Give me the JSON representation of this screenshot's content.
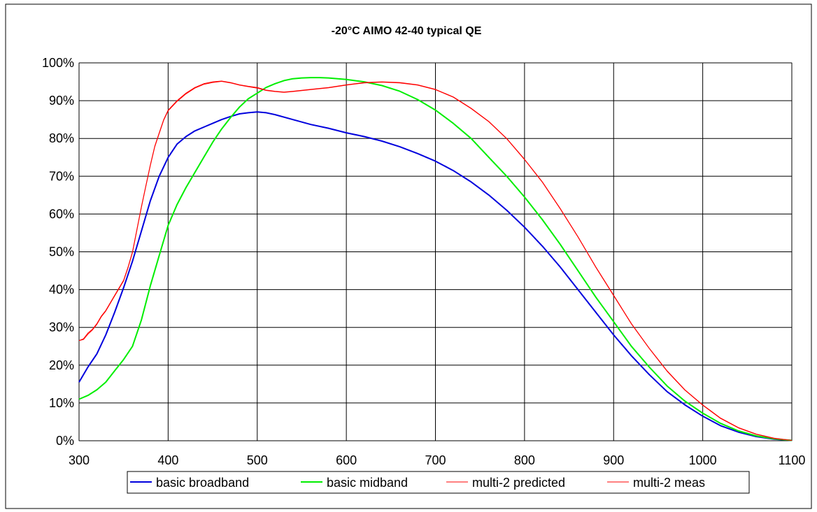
{
  "chart_data": {
    "type": "line",
    "title": "-20°C AIMO 42-40 typical QE",
    "xlabel": "",
    "ylabel": "",
    "xlim": [
      300,
      1100
    ],
    "ylim": [
      0,
      100
    ],
    "x_ticks": [
      300,
      400,
      500,
      600,
      700,
      800,
      900,
      1000,
      1100
    ],
    "y_ticks": [
      0,
      10,
      20,
      30,
      40,
      50,
      60,
      70,
      80,
      90,
      100
    ],
    "x_tick_labels": [
      "300",
      "400",
      "500",
      "600",
      "700",
      "800",
      "900",
      "1000",
      "1100"
    ],
    "y_tick_labels": [
      "0%",
      "10%",
      "20%",
      "30%",
      "40%",
      "50%",
      "60%",
      "70%",
      "80%",
      "90%",
      "100%"
    ],
    "grid": true,
    "legend_position": "bottom",
    "series": [
      {
        "name": "basic broadband",
        "color": "#0000dd",
        "x": [
          300,
          310,
          320,
          330,
          340,
          350,
          360,
          370,
          380,
          390,
          400,
          410,
          420,
          430,
          440,
          450,
          460,
          470,
          480,
          490,
          500,
          510,
          520,
          540,
          560,
          580,
          600,
          620,
          640,
          660,
          680,
          700,
          720,
          740,
          760,
          780,
          800,
          820,
          840,
          860,
          880,
          900,
          920,
          940,
          960,
          980,
          1000,
          1020,
          1040,
          1060,
          1080,
          1100
        ],
        "y": [
          15.5,
          19.5,
          23,
          28,
          34,
          40.5,
          47.5,
          55.5,
          63.5,
          70,
          75,
          78.5,
          80.5,
          82,
          83,
          84,
          85,
          85.8,
          86.5,
          86.8,
          87,
          86.8,
          86.3,
          85,
          83.7,
          82.7,
          81.5,
          80.5,
          79.3,
          77.8,
          76,
          74,
          71.5,
          68.5,
          65,
          61,
          56.5,
          51.5,
          46,
          40,
          34,
          28,
          22.5,
          17.5,
          13,
          9.5,
          6.5,
          4,
          2.3,
          1.1,
          0.4,
          0.1
        ]
      },
      {
        "name": "basic midband",
        "color": "#00ee00",
        "x": [
          300,
          310,
          320,
          330,
          340,
          350,
          360,
          370,
          380,
          390,
          400,
          410,
          420,
          430,
          440,
          450,
          460,
          470,
          480,
          490,
          500,
          510,
          520,
          530,
          540,
          550,
          560,
          570,
          580,
          600,
          620,
          640,
          660,
          680,
          700,
          720,
          740,
          760,
          780,
          800,
          820,
          840,
          860,
          880,
          900,
          920,
          940,
          960,
          980,
          1000,
          1020,
          1040,
          1060,
          1080,
          1100
        ],
        "y": [
          11,
          12,
          13.5,
          15.5,
          18.5,
          21.5,
          25,
          32,
          41,
          49,
          57,
          62.5,
          67,
          71,
          75,
          79,
          82.5,
          85.5,
          88.3,
          90.5,
          92,
          93.5,
          94.5,
          95.3,
          95.8,
          96,
          96.1,
          96.1,
          96,
          95.6,
          95,
          94,
          92.5,
          90.3,
          87.5,
          84,
          80,
          75,
          70,
          64.5,
          58.5,
          52,
          45,
          38,
          31.5,
          25,
          19.5,
          14.5,
          10.5,
          7.3,
          4.6,
          2.6,
          1.3,
          0.5,
          0.1
        ]
      },
      {
        "name": "multi-2 predicted",
        "color": "#ff0000",
        "x": [
          300,
          305,
          310,
          315,
          320,
          325,
          330,
          340,
          350,
          355,
          360,
          365,
          370,
          375,
          380,
          385,
          390,
          395,
          400,
          410,
          420,
          430,
          440,
          450,
          460,
          470,
          480,
          490,
          500,
          510,
          520,
          530,
          540,
          560,
          580,
          600,
          620,
          640,
          660,
          680,
          700,
          720,
          740,
          760,
          780,
          800,
          820,
          840,
          860,
          880,
          900,
          920,
          940,
          960,
          980,
          1000,
          1020,
          1040,
          1060,
          1080,
          1100
        ],
        "y": [
          26.5,
          27,
          28.5,
          29.5,
          31,
          33,
          34.5,
          38.5,
          42.5,
          46,
          50,
          56,
          62,
          67.5,
          73,
          78,
          81.5,
          85,
          87.5,
          90,
          92,
          93.5,
          94.5,
          95,
          95.2,
          94.8,
          94.2,
          93.8,
          93.5,
          92.8,
          92.5,
          92.3,
          92.5,
          93,
          93.5,
          94.2,
          94.8,
          95,
          94.8,
          94.2,
          93,
          91,
          88,
          84.5,
          80,
          74.5,
          68.5,
          61.5,
          54,
          46,
          38.5,
          31,
          24.5,
          18.5,
          13.5,
          9.5,
          6,
          3.5,
          1.8,
          0.7,
          0.1
        ]
      },
      {
        "name": "multi-2 meas",
        "color": "#ff0000",
        "x": [
          300,
          305,
          310,
          315,
          320,
          325,
          330,
          340,
          350,
          355,
          360,
          365,
          370,
          375,
          380,
          385,
          390,
          395,
          400,
          410,
          420,
          430,
          440,
          450,
          460,
          470,
          480,
          490,
          500,
          510,
          520,
          530,
          540,
          560,
          580,
          600,
          620,
          640,
          660,
          680,
          700,
          720,
          740,
          760,
          780,
          800,
          820,
          840,
          860,
          880,
          900,
          920,
          940,
          960,
          980,
          1000,
          1020,
          1040,
          1060,
          1080,
          1100
        ],
        "y": [
          26.5,
          26.8,
          28.2,
          29.3,
          30.8,
          32.8,
          34.3,
          38.3,
          42.3,
          45.8,
          49.8,
          55.8,
          61.8,
          67.3,
          72.8,
          77.8,
          81.3,
          84.8,
          87.3,
          89.8,
          91.8,
          93.3,
          94.3,
          94.8,
          95.1,
          94.7,
          94.1,
          93.7,
          93.3,
          92.7,
          92.4,
          92.2,
          92.4,
          92.9,
          93.4,
          94.1,
          94.7,
          94.9,
          94.7,
          94.1,
          92.9,
          90.9,
          87.9,
          84.4,
          79.9,
          74.4,
          68.4,
          61.4,
          53.9,
          45.9,
          38.4,
          30.9,
          24.4,
          18.4,
          13.4,
          9.4,
          5.9,
          3.4,
          1.7,
          0.6,
          0.1
        ]
      }
    ]
  }
}
